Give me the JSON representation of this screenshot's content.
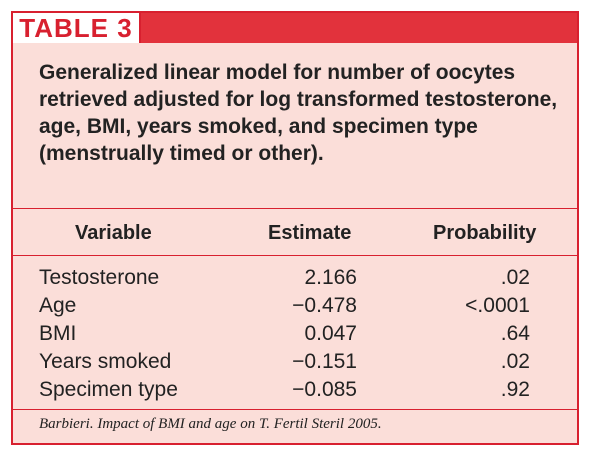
{
  "table_label": "TABLE 3",
  "caption": "Generalized linear model for number of oocytes retrieved adjusted for log transformed testosterone, age, BMI, years smoked, and specimen type (menstrually timed or other).",
  "headers": {
    "variable": "Variable",
    "estimate": "Estimate",
    "probability": "Probability"
  },
  "rows": [
    {
      "variable": "Testosterone",
      "estimate": "2.166",
      "probability": ".02"
    },
    {
      "variable": "Age",
      "estimate": "−0.478",
      "probability": "<.0001"
    },
    {
      "variable": "BMI",
      "estimate": "0.047",
      "probability": ".64"
    },
    {
      "variable": "Years smoked",
      "estimate": "−0.151",
      "probability": ".02"
    },
    {
      "variable": "Specimen type",
      "estimate": "−0.085",
      "probability": ".92"
    }
  ],
  "footer": "Barbieri. Impact of BMI and age on T. Fertil Steril 2005.",
  "colors": {
    "accent": "#d8202f",
    "background": "#fbded9"
  }
}
